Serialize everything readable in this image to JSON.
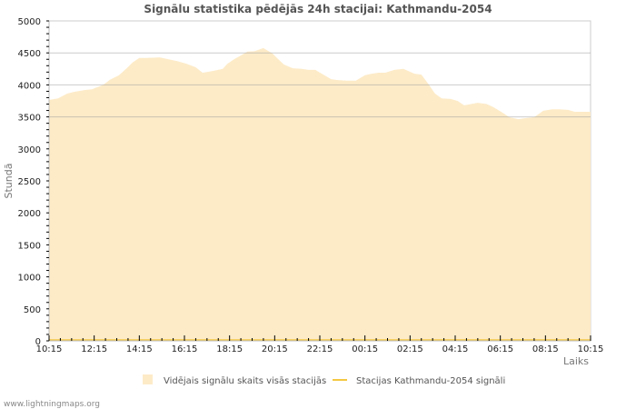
{
  "chart_data": {
    "type": "area",
    "title": "Signālu statistika pēdējās 24h stacijai: Kathmandu-2054",
    "xlabel": "Laiks",
    "ylabel": "Stundā",
    "ylim": [
      0,
      5000
    ],
    "yticks": [
      0,
      500,
      1000,
      1500,
      2000,
      2500,
      3000,
      3500,
      4000,
      4500,
      5000
    ],
    "ygrid_major": [
      3500,
      4000,
      4500,
      5000
    ],
    "xticks": [
      "10:15",
      "12:15",
      "14:15",
      "16:15",
      "18:15",
      "20:15",
      "22:15",
      "00:15",
      "02:15",
      "04:15",
      "06:15",
      "08:15",
      "10:15"
    ],
    "grid": true,
    "legend_position": "bottom",
    "series": [
      {
        "name": "Vidējais signālu skaits visās stacijās",
        "style": "area",
        "color": "#fdebc8",
        "x_hours": [
          0,
          0.4,
          0.8,
          1.1,
          1.6,
          1.9,
          2.4,
          2.7,
          3.1,
          3.5,
          3.7,
          4.0,
          4.3,
          4.6,
          4.9,
          5.3,
          5.7,
          6.1,
          6.5,
          6.8,
          7.0,
          7.3,
          7.7,
          7.9,
          8.2,
          8.5,
          8.8,
          9.1,
          9.5,
          9.9,
          10.1,
          10.4,
          10.8,
          11.2,
          11.5,
          11.8,
          12.2,
          12.5,
          12.8,
          13.2,
          13.6,
          14.0,
          14.3,
          14.6,
          14.9,
          15.3,
          15.7,
          16.2,
          16.5,
          16.8,
          17.1,
          17.4,
          17.8,
          18.1,
          18.4,
          18.7,
          19.0,
          19.4,
          19.7,
          20.1,
          20.4,
          20.8,
          21.1,
          21.5,
          21.9,
          22.3,
          22.6,
          23.0,
          23.3,
          23.7,
          24.0
        ],
        "values": [
          3764,
          3790,
          3864,
          3890,
          3920,
          3930,
          4000,
          4080,
          4150,
          4280,
          4350,
          4420,
          4420,
          4425,
          4430,
          4400,
          4370,
          4330,
          4275,
          4190,
          4200,
          4220,
          4250,
          4330,
          4400,
          4460,
          4520,
          4525,
          4575,
          4490,
          4420,
          4320,
          4260,
          4250,
          4235,
          4235,
          4150,
          4090,
          4075,
          4065,
          4065,
          4150,
          4175,
          4190,
          4190,
          4235,
          4250,
          4175,
          4160,
          4020,
          3865,
          3790,
          3780,
          3750,
          3680,
          3700,
          3720,
          3700,
          3650,
          3565,
          3495,
          3465,
          3480,
          3495,
          3595,
          3620,
          3620,
          3610,
          3580,
          3580,
          3580
        ]
      },
      {
        "name": "Stacijas Kathmandu-2054 signāli",
        "style": "line",
        "color": "#f5c842",
        "x_hours": [
          0,
          24
        ],
        "values": [
          0,
          0
        ]
      }
    ]
  },
  "footer": {
    "site": "www.lightningmaps.org"
  }
}
